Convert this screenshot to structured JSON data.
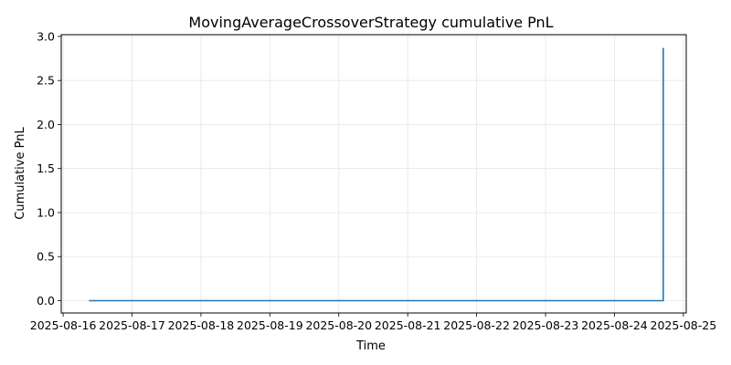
{
  "chart_data": {
    "type": "line",
    "title": "MovingAverageCrossoverStrategy cumulative PnL",
    "xlabel": "Time",
    "ylabel": "Cumulative PnL",
    "x_ticks": [
      "2025-08-16",
      "2025-08-17",
      "2025-08-18",
      "2025-08-19",
      "2025-08-20",
      "2025-08-21",
      "2025-08-22",
      "2025-08-23",
      "2025-08-24",
      "2025-08-25"
    ],
    "y_ticks": [
      "0.0",
      "0.5",
      "1.0",
      "1.5",
      "2.0",
      "2.5",
      "3.0"
    ],
    "xlim": [
      "2025-08-15T23:20",
      "2025-08-25T01:00"
    ],
    "ylim": [
      -0.14,
      3.02
    ],
    "grid": true,
    "color": "#1f77b4",
    "series": [
      {
        "x": [
          "2025-08-16T09:00",
          "2025-08-24T17:00",
          "2025-08-24T17:00"
        ],
        "y": [
          0.0,
          0.0,
          2.87
        ]
      }
    ]
  }
}
